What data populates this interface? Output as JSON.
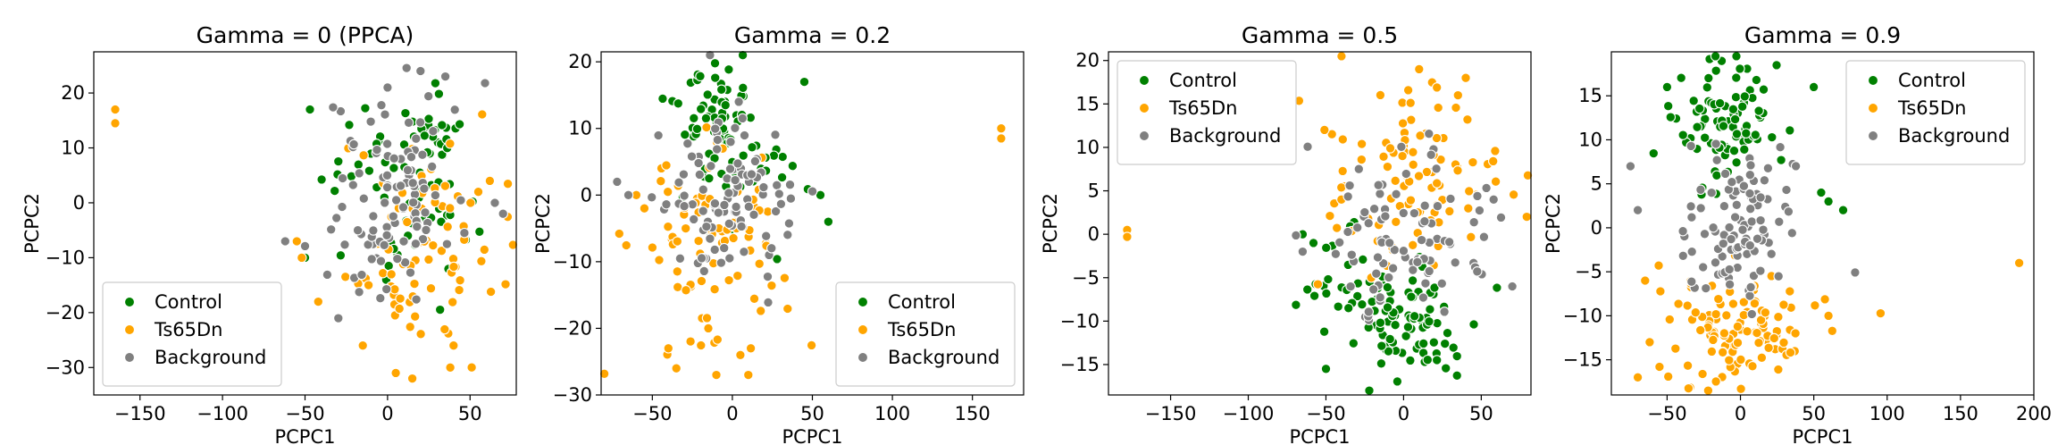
{
  "colors": {
    "Control": "#008000",
    "Ts65Dn": "#ffa500",
    "Background": "#808080"
  },
  "chart_data": [
    {
      "type": "scatter",
      "title": "Gamma = 0 (PPCA)",
      "xlabel": "PCPC1",
      "ylabel": "PCPC2",
      "xlim": [
        -178,
        78
      ],
      "ylim": [
        -35,
        27.5
      ],
      "xticks": [
        -150,
        -100,
        -50,
        0,
        50
      ],
      "yticks": [
        -30,
        -20,
        -10,
        0,
        10,
        20
      ],
      "xtick_labels": [
        "−150",
        "−100",
        "−50",
        "0",
        "50"
      ],
      "ytick_labels": [
        "−30",
        "−20",
        "−10",
        "0",
        "10",
        "20"
      ],
      "legend_placement": "lower-left",
      "legend": [
        "Control",
        "Ts65Dn",
        "Background"
      ],
      "series": [
        {
          "name": "Control",
          "clusters": [
            {
              "cx": 10,
              "cy": 3,
              "sx": 22,
              "sy": 9,
              "n": 55
            },
            {
              "cx": 25,
              "cy": 13,
              "sx": 10,
              "sy": 3,
              "n": 20
            }
          ],
          "points": [
            [
              -47,
              17
            ],
            [
              -50,
              -10
            ]
          ]
        },
        {
          "name": "Ts65Dn",
          "clusters": [
            {
              "cx": 15,
              "cy": -8,
              "sx": 25,
              "sy": 9,
              "n": 75
            }
          ],
          "points": [
            [
              -165,
              17
            ],
            [
              -165,
              14.5
            ],
            [
              -55,
              -7
            ],
            [
              -52,
              -10
            ],
            [
              -42,
              -18
            ],
            [
              5,
              -31
            ],
            [
              15,
              -32
            ],
            [
              -15,
              -26
            ],
            [
              38,
              -30
            ],
            [
              40,
              -26
            ],
            [
              62,
              4
            ],
            [
              55,
              2
            ]
          ]
        },
        {
          "name": "Background",
          "clusters": [
            {
              "cx": 5,
              "cy": 0,
              "sx": 20,
              "sy": 9,
              "n": 100
            }
          ],
          "points": [
            [
              -62,
              -7
            ],
            [
              -18,
              -5
            ],
            [
              20,
              24
            ],
            [
              35,
              23
            ],
            [
              70,
              -2
            ],
            [
              65,
              0
            ],
            [
              0,
              21
            ]
          ]
        }
      ]
    },
    {
      "type": "scatter",
      "title": "Gamma = 0.2",
      "xlabel": "PCPC1",
      "ylabel": "PCPC2",
      "xlim": [
        -82,
        182
      ],
      "ylim": [
        -30,
        21.5
      ],
      "xticks": [
        -50,
        0,
        50,
        100,
        150
      ],
      "yticks": [
        -30,
        -20,
        -10,
        0,
        10,
        20
      ],
      "xtick_labels": [
        "−50",
        "0",
        "50",
        "100",
        "150"
      ],
      "ytick_labels": [
        "−30",
        "−20",
        "−10",
        "0",
        "10",
        "20"
      ],
      "legend_placement": "lower-right",
      "legend": [
        "Control",
        "Ts65Dn",
        "Background"
      ],
      "series": [
        {
          "name": "Control",
          "clusters": [
            {
              "cx": -15,
              "cy": 13,
              "sx": 13,
              "sy": 3.5,
              "n": 40
            },
            {
              "cx": 0,
              "cy": 4,
              "sx": 18,
              "sy": 5,
              "n": 40
            }
          ],
          "points": [
            [
              45,
              17
            ],
            [
              55,
              0
            ],
            [
              60,
              -4
            ]
          ]
        },
        {
          "name": "Ts65Dn",
          "clusters": [
            {
              "cx": -15,
              "cy": -8,
              "sx": 22,
              "sy": 7,
              "n": 85
            }
          ],
          "points": [
            [
              168,
              10
            ],
            [
              168,
              8.5
            ],
            [
              -40,
              -23
            ],
            [
              -35,
              -26
            ],
            [
              -10,
              -27
            ],
            [
              -15,
              -20
            ],
            [
              5,
              -24
            ],
            [
              10,
              -27
            ],
            [
              -60,
              0
            ],
            [
              -55,
              -2
            ]
          ]
        },
        {
          "name": "Background",
          "clusters": [
            {
              "cx": -5,
              "cy": -1,
              "sx": 20,
              "sy": 6,
              "n": 100
            }
          ],
          "points": [
            [
              -72,
              2
            ],
            [
              -65,
              0
            ]
          ]
        }
      ]
    },
    {
      "type": "scatter",
      "title": "Gamma = 0.5",
      "xlabel": "PCPC1",
      "ylabel": "PCPC2",
      "xlim": [
        -190,
        82
      ],
      "ylim": [
        -18.5,
        21
      ],
      "xticks": [
        -150,
        -100,
        -50,
        0,
        50
      ],
      "yticks": [
        -15,
        -10,
        -5,
        0,
        5,
        10,
        15,
        20
      ],
      "xtick_labels": [
        "−150",
        "−100",
        "−50",
        "0",
        "50"
      ],
      "ytick_labels": [
        "−15",
        "−10",
        "−5",
        "0",
        "5",
        "10",
        "15",
        "20"
      ],
      "legend_placement": "top-left",
      "legend": [
        "Control",
        "Ts65Dn",
        "Background"
      ],
      "series": [
        {
          "name": "Control",
          "clusters": [
            {
              "cx": 5,
              "cy": -10,
              "sx": 18,
              "sy": 3.5,
              "n": 80
            },
            {
              "cx": -40,
              "cy": -6,
              "sx": 12,
              "sy": 3,
              "n": 25
            }
          ],
          "points": [
            [
              -50,
              -15.5
            ],
            [
              -65,
              0
            ],
            [
              -58,
              -1
            ]
          ]
        },
        {
          "name": "Ts65Dn",
          "clusters": [
            {
              "cx": 5,
              "cy": 7,
              "sx": 28,
              "sy": 5,
              "n": 95
            }
          ],
          "points": [
            [
              -178,
              0.5
            ],
            [
              -178,
              -0.3
            ],
            [
              10,
              19
            ],
            [
              40,
              18
            ],
            [
              35,
              16
            ],
            [
              -40,
              4
            ]
          ]
        },
        {
          "name": "Background",
          "clusters": [
            {
              "cx": 0,
              "cy": 0,
              "sx": 25,
              "sy": 4.5,
              "n": 90
            }
          ],
          "points": [
            [
              70,
              -6
            ],
            [
              -65,
              -2
            ]
          ]
        }
      ]
    },
    {
      "type": "scatter",
      "title": "Gamma = 0.9",
      "xlabel": "PCPC1",
      "ylabel": "PCPC2",
      "xlim": [
        -88,
        200
      ],
      "ylim": [
        -19,
        20
      ],
      "xticks": [
        -50,
        0,
        50,
        100,
        150,
        200
      ],
      "yticks": [
        -15,
        -10,
        -5,
        0,
        5,
        10,
        15
      ],
      "xtick_labels": [
        "−50",
        "0",
        "50",
        "100",
        "150",
        "200"
      ],
      "ytick_labels": [
        "−15",
        "−10",
        "−5",
        "0",
        "5",
        "10",
        "15"
      ],
      "legend_placement": "top-right",
      "legend": [
        "Control",
        "Ts65Dn",
        "Background"
      ],
      "series": [
        {
          "name": "Control",
          "clusters": [
            {
              "cx": -10,
              "cy": 12,
              "sx": 18,
              "sy": 3.5,
              "n": 90
            }
          ],
          "points": [
            [
              55,
              4
            ],
            [
              60,
              3
            ],
            [
              70,
              2
            ],
            [
              50,
              16
            ],
            [
              -50,
              16
            ]
          ]
        },
        {
          "name": "Ts65Dn",
          "clusters": [
            {
              "cx": -5,
              "cy": -11,
              "sx": 30,
              "sy": 3.5,
              "n": 110
            }
          ],
          "points": [
            [
              190,
              -4
            ],
            [
              -70,
              -17
            ],
            [
              -65,
              -6
            ],
            [
              60,
              -10
            ]
          ]
        },
        {
          "name": "Background",
          "clusters": [
            {
              "cx": 0,
              "cy": 0,
              "sx": 22,
              "sy": 4.5,
              "n": 100
            }
          ],
          "points": [
            [
              -75,
              7
            ],
            [
              -70,
              2
            ]
          ]
        }
      ]
    }
  ]
}
